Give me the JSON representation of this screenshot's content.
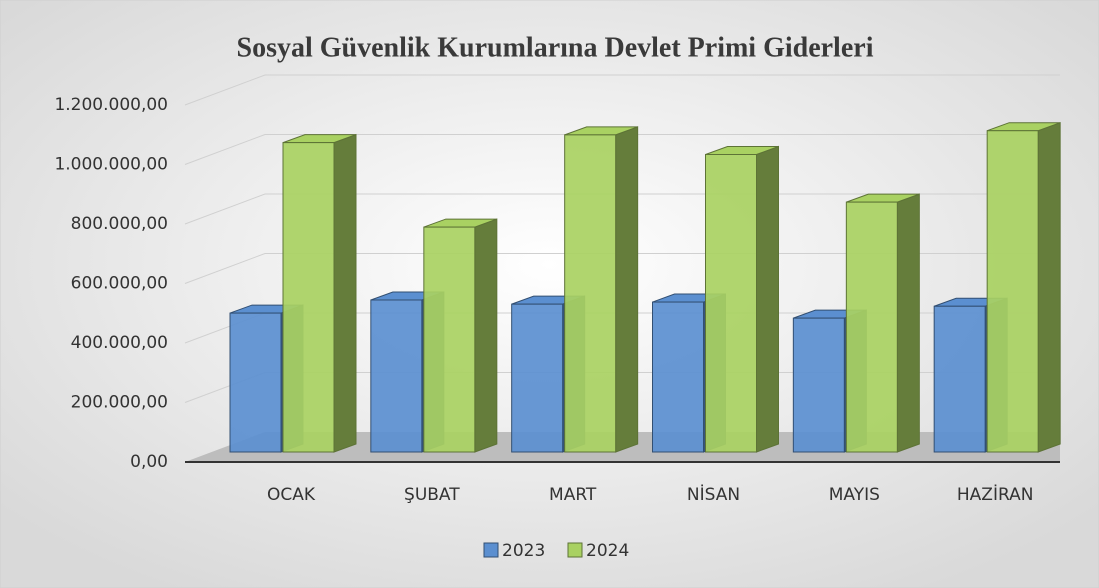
{
  "chart_data": {
    "type": "bar3d",
    "title": "Sosyal Güvenlik Kurumlarına Devlet Primi Giderleri",
    "categories": [
      "OCAK",
      "ŞUBAT",
      "MART",
      "NİSAN",
      "MAYIS",
      "HAZİRAN"
    ],
    "series": [
      {
        "name": "2023",
        "color": "#5b8fd0",
        "values": [
          467000,
          511000,
          497000,
          504000,
          450000,
          490000
        ]
      },
      {
        "name": "2024",
        "color": "#a9d162",
        "values": [
          1040000,
          756000,
          1066000,
          1000000,
          840000,
          1080000
        ]
      }
    ],
    "ylim": [
      0,
      1200000
    ],
    "yticks": [
      {
        "value": 0,
        "label": "0,00"
      },
      {
        "value": 200000,
        "label": "200.000,00"
      },
      {
        "value": 400000,
        "label": "400.000,00"
      },
      {
        "value": 600000,
        "label": "600.000,00"
      },
      {
        "value": 800000,
        "label": "800.000,00"
      },
      {
        "value": 1000000,
        "label": "1.000.000,00"
      },
      {
        "value": 1200000,
        "label": "1.200.000,00"
      }
    ],
    "grid": true,
    "legend": "bottom"
  }
}
